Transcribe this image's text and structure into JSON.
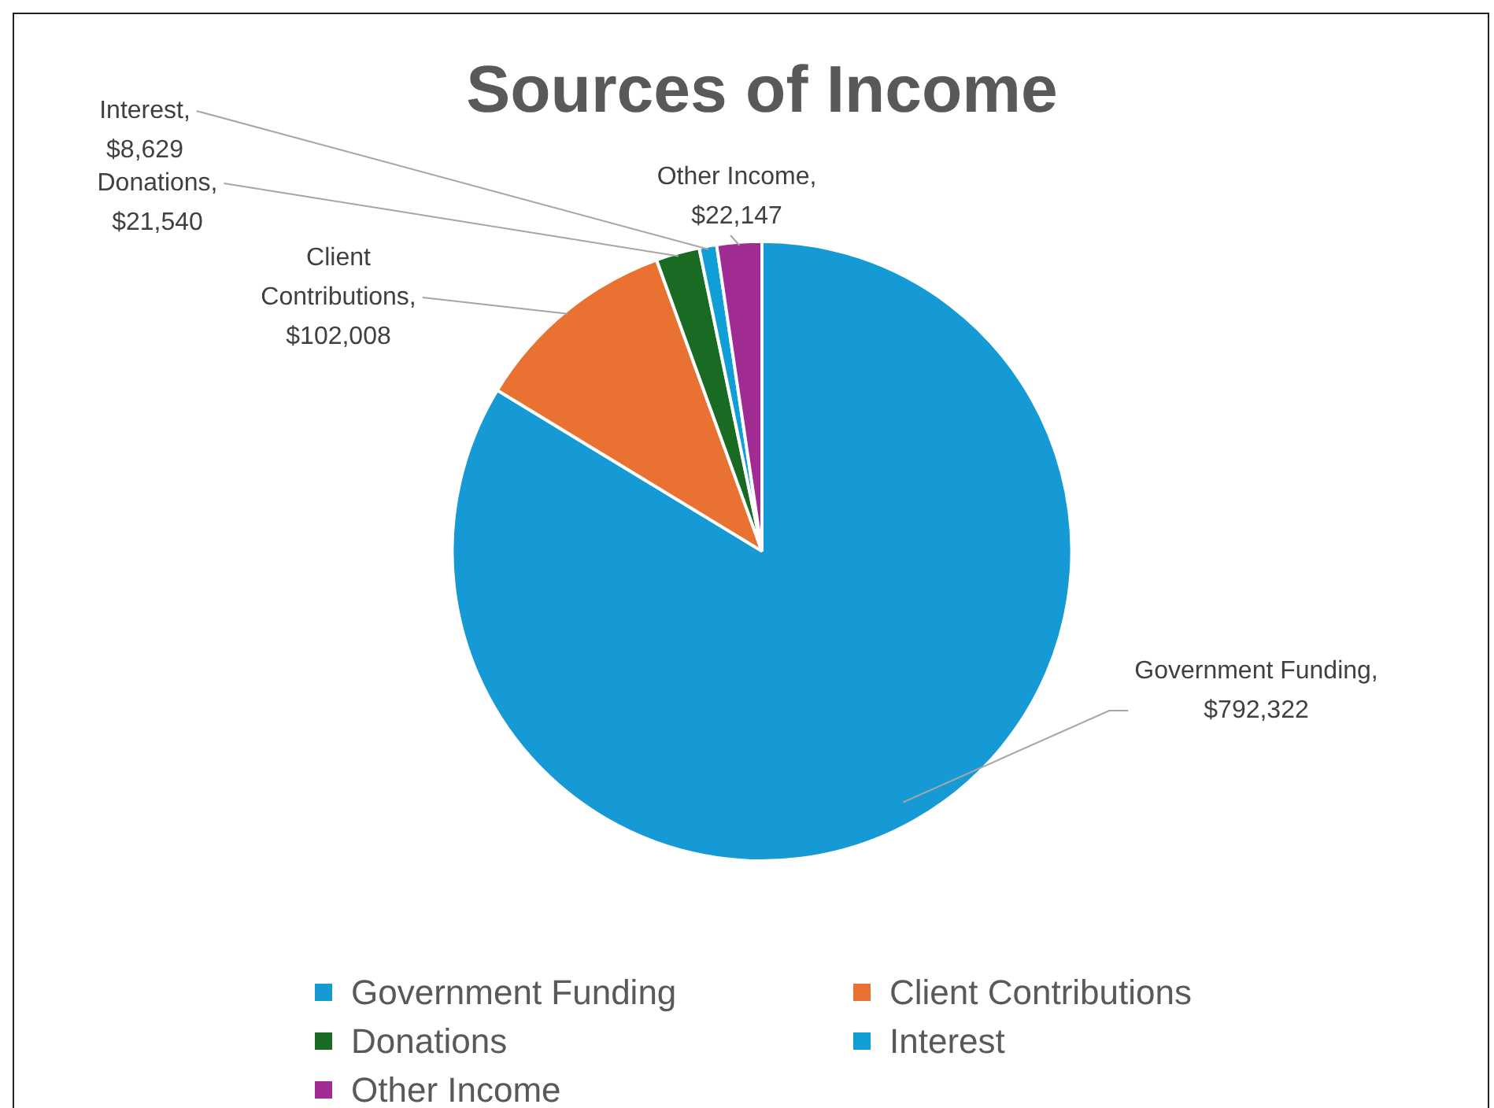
{
  "chart_data": {
    "type": "pie",
    "title": "Sources of Income",
    "categories": [
      "Government Funding",
      "Client Contributions",
      "Donations",
      "Interest",
      "Other Income"
    ],
    "values": [
      792322,
      102008,
      21540,
      8629,
      22147
    ],
    "value_labels": [
      "Government Funding, $792,322",
      "Client Contributions, $102,008",
      "Donations, $21,540",
      "Interest, $8,629",
      "Other Income, $22,147"
    ],
    "colors": [
      "#159ad5",
      "#e97132",
      "#196b24",
      "#0f9ed5",
      "#a02b93"
    ],
    "legend": "bottom"
  }
}
